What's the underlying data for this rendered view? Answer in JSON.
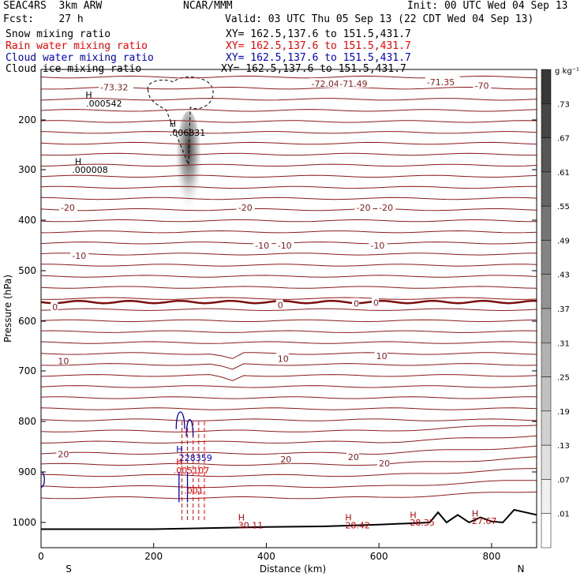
{
  "header": {
    "title_left": "SEAC4RS  3km ARW",
    "forecast": "Fcst:    27 h",
    "center": "NCAR/MMM",
    "init": "Init: 00 UTC Wed 04 Sep 13",
    "valid": "Valid: 03 UTC Thu 05 Sep 13 (22 CDT Wed 04 Sep 13)"
  },
  "fields": [
    {
      "label": "Snow mixing ratio",
      "xy": "XY= 162.5,137.6 to 151.5,431.7",
      "color": "#000000"
    },
    {
      "label": "Rain water mixing ratio",
      "xy": "XY= 162.5,137.6 to 151.5,431.7",
      "color": "#ff0000"
    },
    {
      "label": "Cloud water mixing ratio",
      "xy": "XY= 162.5,137.6 to 151.5,431.7",
      "color": "#0000cc"
    },
    {
      "label": "Cloud ice mixing ratio",
      "xy": "XY= 162.5,137.6 to 151.5,431.7",
      "color": "#000000"
    }
  ],
  "chart_data": {
    "type": "cross-section",
    "xlabel": "Distance (km)",
    "ylabel": "Pressure (hPa)",
    "xlim": [
      0,
      880
    ],
    "ylim": [
      1045,
      100
    ],
    "x_ticks": [
      0,
      200,
      400,
      600,
      800
    ],
    "y_ticks": [
      200,
      300,
      400,
      500,
      600,
      700,
      800,
      900,
      1000
    ],
    "y_tick_labels": [
      "200",
      "300",
      "400",
      "500",
      "600",
      "700",
      "800",
      "900",
      "1000"
    ],
    "x_ends": {
      "left": "S",
      "right": "N"
    },
    "colorbar": {
      "unit": "g kg⁻¹",
      "levels": [
        ".01",
        ".07",
        ".13",
        ".19",
        ".25",
        ".31",
        ".37",
        ".43",
        ".49",
        ".55",
        ".61",
        ".67",
        ".73"
      ]
    },
    "temperature_contours": [
      {
        "p": 560,
        "label": "0",
        "bold": true
      },
      {
        "p": 470,
        "label": "-10"
      },
      {
        "p": 375,
        "label": "-20"
      },
      {
        "p": 150,
        "label": "-70"
      },
      {
        "p": 672,
        "label": "10"
      },
      {
        "p": 865,
        "label": "20"
      }
    ],
    "temperature_labels": [
      {
        "x": 35,
        "p": 375,
        "text": "-20"
      },
      {
        "x": 350,
        "p": 375,
        "text": "-20"
      },
      {
        "x": 560,
        "p": 375,
        "text": "-20"
      },
      {
        "x": 600,
        "p": 375,
        "text": "-20"
      },
      {
        "x": 55,
        "p": 470,
        "text": "-10"
      },
      {
        "x": 380,
        "p": 450,
        "text": "-10"
      },
      {
        "x": 420,
        "p": 450,
        "text": "-10"
      },
      {
        "x": 585,
        "p": 450,
        "text": "-10"
      },
      {
        "x": 20,
        "p": 572,
        "text": "0"
      },
      {
        "x": 420,
        "p": 568,
        "text": "0"
      },
      {
        "x": 555,
        "p": 565,
        "text": "0"
      },
      {
        "x": 590,
        "p": 563,
        "text": "0"
      },
      {
        "x": 30,
        "p": 680,
        "text": "10"
      },
      {
        "x": 420,
        "p": 675,
        "text": "10"
      },
      {
        "x": 595,
        "p": 670,
        "text": "10"
      },
      {
        "x": 30,
        "p": 865,
        "text": "20"
      },
      {
        "x": 425,
        "p": 875,
        "text": "20"
      },
      {
        "x": 545,
        "p": 870,
        "text": "20"
      },
      {
        "x": 600,
        "p": 883,
        "text": "20"
      },
      {
        "x": 770,
        "p": 132,
        "text": "-70"
      },
      {
        "x": 105,
        "p": 135,
        "text": "-73.32"
      },
      {
        "x": 480,
        "p": 128,
        "text": "-72.04"
      },
      {
        "x": 530,
        "p": 128,
        "text": "-71.49"
      },
      {
        "x": 685,
        "p": 125,
        "text": "-71.35"
      }
    ],
    "annotations": [
      {
        "x": 79,
        "p": 150,
        "text": "H",
        "color": "#000000"
      },
      {
        "x": 80,
        "p": 167,
        "text": ".000542",
        "color": "#000000"
      },
      {
        "x": 228,
        "p": 207,
        "text": "H",
        "color": "#000000"
      },
      {
        "x": 228,
        "p": 225,
        "text": ".006831",
        "color": "#000000"
      },
      {
        "x": 60,
        "p": 283,
        "text": "H",
        "color": "#000000"
      },
      {
        "x": 55,
        "p": 300,
        "text": ".000008",
        "color": "#000000"
      },
      {
        "x": 240,
        "p": 855,
        "text": "H",
        "color": "#0000cc"
      },
      {
        "x": 240,
        "p": 872,
        "text": ".228359",
        "color": "#0000cc"
      },
      {
        "x": 240,
        "p": 880,
        "text": "H",
        "color": "#ff0000"
      },
      {
        "x": 235,
        "p": 897,
        "text": ".005107",
        "color": "#ff0000"
      },
      {
        "x": 254,
        "p": 937,
        "text": ".001",
        "color": "#ff0000"
      },
      {
        "x": 350,
        "p": 990,
        "text": "H",
        "color": "#cc0000"
      },
      {
        "x": 350,
        "p": 1005,
        "text": "30.11",
        "color": "#cc0000"
      },
      {
        "x": 540,
        "p": 990,
        "text": "H",
        "color": "#cc0000"
      },
      {
        "x": 540,
        "p": 1005,
        "text": "28.42",
        "color": "#cc0000"
      },
      {
        "x": 655,
        "p": 985,
        "text": "H",
        "color": "#cc0000"
      },
      {
        "x": 655,
        "p": 1000,
        "text": "28.35",
        "color": "#cc0000"
      },
      {
        "x": 765,
        "p": 982,
        "text": "H",
        "color": "#cc0000"
      },
      {
        "x": 765,
        "p": 997,
        "text": "27.67",
        "color": "#cc0000"
      }
    ],
    "grid": false
  }
}
